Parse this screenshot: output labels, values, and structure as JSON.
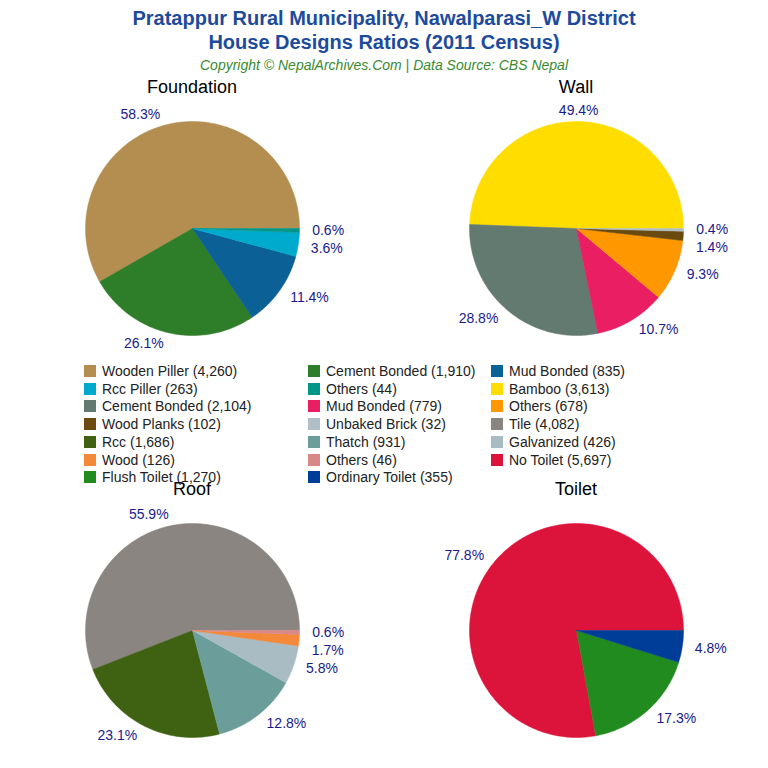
{
  "title": "Pratappur Rural Municipality, Nawalparasi_W District\nHouse Designs Ratios (2011 Census)",
  "subtitle": "Copyright © NepalArchives.Com | Data Source: CBS Nepal",
  "legend": "center",
  "chart_data": [
    {
      "type": "pie",
      "title": "Foundation",
      "categories": [
        "Wooden Piller (4,260)",
        "Cement Bonded (1,910)",
        "Mud Bonded (835)",
        "Rcc Piller (263)",
        "Others (44)"
      ],
      "values": [
        58.3,
        26.1,
        11.4,
        3.6,
        0.6
      ],
      "value_labels": [
        "58.3%",
        "26.1%",
        "11.4%",
        "3.6%",
        "0.6%"
      ],
      "colors": [
        "#b38e50",
        "#2e7d28",
        "#0b6196",
        "#00aacc",
        "#009688"
      ],
      "data_labels": true
    },
    {
      "type": "pie",
      "title": "Wall",
      "categories": [
        "Bamboo (3,613)",
        "Cement Bonded (2,104)",
        "Mud Bonded (779)",
        "Others (678)",
        "Wood Planks (102)",
        "Unbaked Brick (32)"
      ],
      "values": [
        49.4,
        28.8,
        10.7,
        9.3,
        1.4,
        0.4
      ],
      "value_labels": [
        "49.4%",
        "28.8%",
        "10.7%",
        "9.3%",
        "1.4%",
        "0.4%"
      ],
      "colors": [
        "#ffdd00",
        "#627a70",
        "#e91e63",
        "#ff9800",
        "#6b4a0f",
        "#b0bec5"
      ],
      "data_labels": true
    },
    {
      "type": "pie",
      "title": "Roof",
      "categories": [
        "Tile (4,082)",
        "Rcc (1,686)",
        "Thatch (931)",
        "Galvanized (426)",
        "Wood (126)",
        "Others (46)"
      ],
      "values": [
        55.9,
        23.1,
        12.8,
        5.8,
        1.7,
        0.6
      ],
      "value_labels": [
        "55.9%",
        "23.1%",
        "12.8%",
        "5.8%",
        "1.7%",
        "0.6%"
      ],
      "colors": [
        "#8a8580",
        "#3f6212",
        "#6b9e9a",
        "#a9bcc4",
        "#f4893a",
        "#d98888"
      ],
      "data_labels": true
    },
    {
      "type": "pie",
      "title": "Toilet",
      "categories": [
        "No Toilet (5,697)",
        "Flush Toilet (1,270)",
        "Ordinary Toilet (355)"
      ],
      "values": [
        77.8,
        17.3,
        4.8
      ],
      "value_labels": [
        "77.8%",
        "17.3%",
        "4.8%"
      ],
      "colors": [
        "#dc143c",
        "#228b1f",
        "#003d99"
      ],
      "data_labels": true
    }
  ]
}
